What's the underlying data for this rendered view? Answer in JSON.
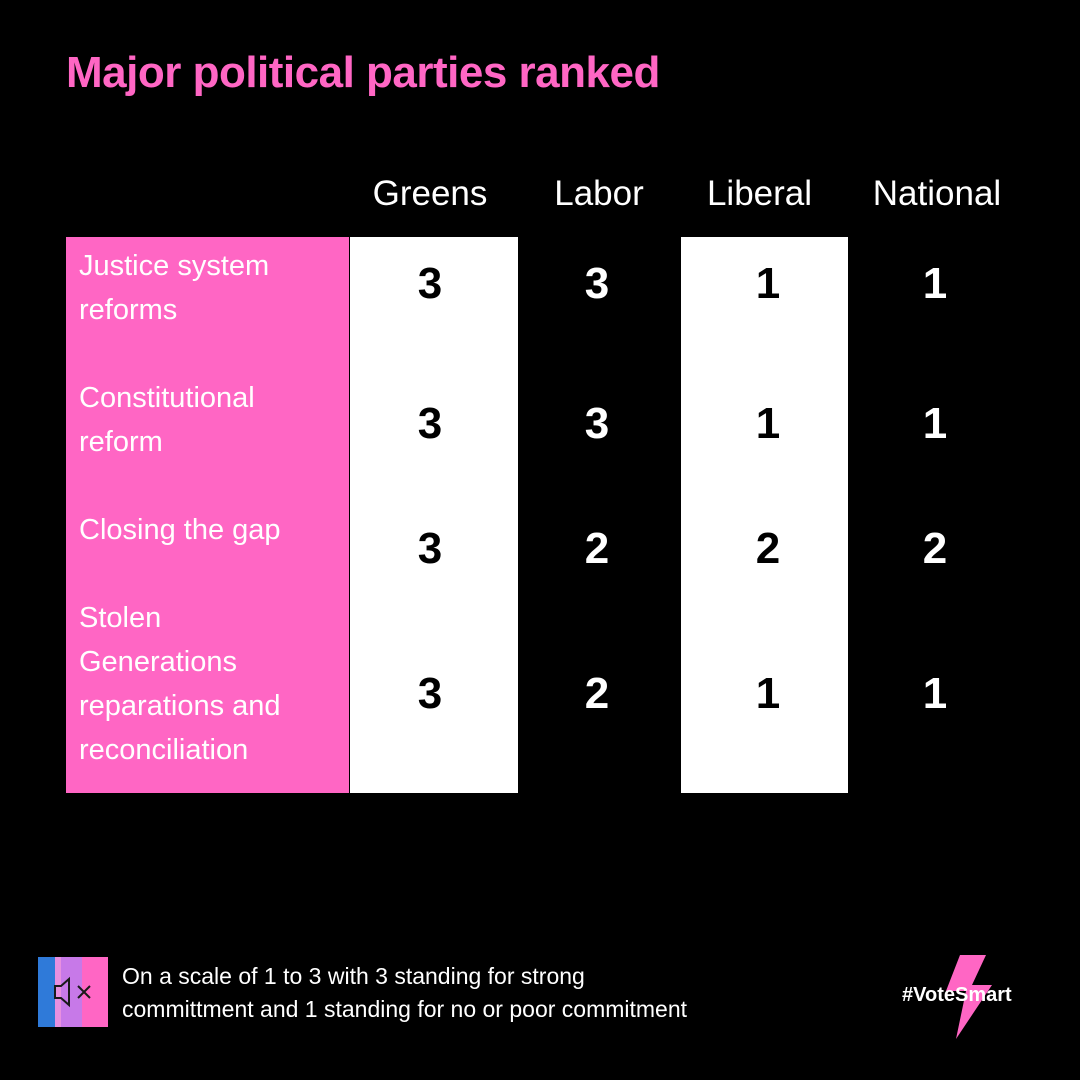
{
  "title": "Major political parties ranked",
  "colors": {
    "accent_pink": "#ff66c4",
    "background": "#000000",
    "cell_white": "#ffffff",
    "text_white": "#ffffff",
    "text_black": "#000000"
  },
  "chart_data": {
    "type": "table",
    "title": "Major political parties ranked",
    "columns": [
      "Greens",
      "Labor",
      "Liberal",
      "National"
    ],
    "rows": [
      {
        "label": "Justice system reforms",
        "lines": [
          "Justice system",
          "reforms"
        ],
        "values": [
          3,
          3,
          1,
          1
        ]
      },
      {
        "label": "Constitutional reform",
        "lines": [
          "Constitutional",
          "reform"
        ],
        "values": [
          3,
          3,
          1,
          1
        ]
      },
      {
        "label": "Closing the gap",
        "lines": [
          "Closing the gap"
        ],
        "values": [
          3,
          2,
          2,
          2
        ]
      },
      {
        "label": "Stolen Generations reparations and reconciliation",
        "lines": [
          "Stolen",
          "Generations",
          "reparations and",
          "reconciliation"
        ],
        "values": [
          3,
          2,
          1,
          1
        ]
      }
    ],
    "scale": [
      1,
      3
    ],
    "highlighted_columns": [
      "Greens",
      "Liberal"
    ]
  },
  "footer": {
    "icon": "muted-speaker-icon",
    "note_line1": "On a scale of 1 to 3 with 3 standing for strong",
    "note_line2": "committment and 1 standing for no or poor commitment",
    "brand_icon": "lightning-bolt-icon",
    "hashtag": "#VoteSmart"
  }
}
